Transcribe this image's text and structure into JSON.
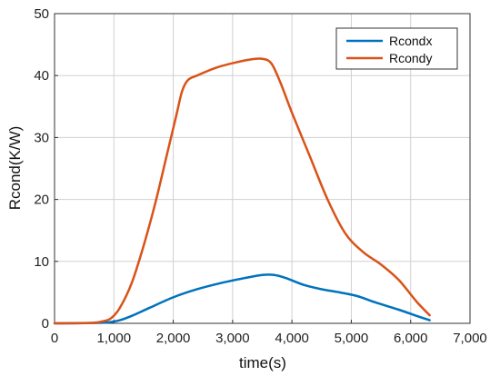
{
  "chart_data": {
    "type": "line",
    "title": "",
    "xlabel": "time(s)",
    "ylabel": "Rcond(K/W)",
    "xlim": [
      0,
      7000
    ],
    "ylim": [
      0,
      50
    ],
    "grid": true,
    "legend_position": "top-right",
    "x_ticks": [
      0,
      1000,
      2000,
      3000,
      4000,
      5000,
      6000,
      7000
    ],
    "x_tick_labels": [
      "0",
      "1,000",
      "2,000",
      "3,000",
      "4,000",
      "5,000",
      "6,000",
      "7,000"
    ],
    "y_ticks": [
      0,
      10,
      20,
      30,
      40,
      50
    ],
    "y_tick_labels": [
      "0",
      "10",
      "20",
      "30",
      "40",
      "50"
    ],
    "series": [
      {
        "name": "Rcondx",
        "color": "#0072BD",
        "x": [
          0,
          600,
          900,
          1100,
          1300,
          1600,
          2000,
          2400,
          2800,
          3200,
          3500,
          3700,
          3900,
          4200,
          4500,
          4800,
          5100,
          5400,
          5800,
          6100,
          6320
        ],
        "y": [
          0,
          0.05,
          0.15,
          0.5,
          1.2,
          2.5,
          4.2,
          5.5,
          6.5,
          7.3,
          7.8,
          7.8,
          7.3,
          6.2,
          5.5,
          5.0,
          4.4,
          3.4,
          2.2,
          1.2,
          0.5
        ]
      },
      {
        "name": "Rcondy",
        "color": "#D95319",
        "x": [
          0,
          600,
          800,
          950,
          1100,
          1300,
          1500,
          1700,
          1900,
          2050,
          2150,
          2250,
          2400,
          2700,
          3000,
          3300,
          3500,
          3650,
          3800,
          4000,
          4300,
          4600,
          4900,
          5200,
          5500,
          5800,
          6100,
          6320
        ],
        "y": [
          0,
          0.05,
          0.3,
          0.8,
          2.5,
          6.5,
          12.5,
          19.5,
          27.5,
          33.5,
          37.5,
          39.3,
          40.0,
          41.2,
          42.0,
          42.6,
          42.7,
          42.0,
          39.0,
          34.0,
          27.0,
          20.0,
          14.5,
          11.5,
          9.5,
          7.0,
          3.5,
          1.3
        ]
      }
    ]
  }
}
